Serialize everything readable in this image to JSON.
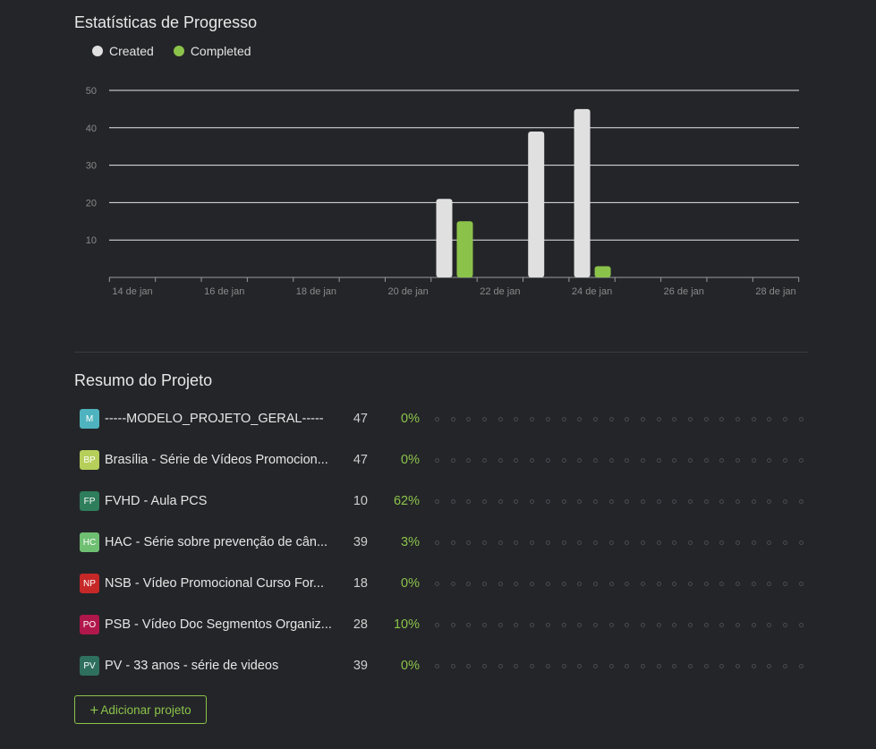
{
  "stats": {
    "title": "Estatísticas de Progresso",
    "legend": [
      {
        "label": "Created",
        "color": "#e0e0e0"
      },
      {
        "label": "Completed",
        "color": "#8bc34a"
      }
    ]
  },
  "chart_data": {
    "type": "bar",
    "title": "",
    "xlabel": "",
    "ylabel": "",
    "ylim": [
      0,
      50
    ],
    "yticks": [
      10,
      20,
      30,
      40,
      50
    ],
    "x_tick_labels": [
      "14 de jan",
      "16 de jan",
      "18 de jan",
      "20 de jan",
      "22 de jan",
      "24 de jan",
      "26 de jan",
      "28 de jan"
    ],
    "categories": [
      "14 de jan",
      "15 de jan",
      "16 de jan",
      "17 de jan",
      "18 de jan",
      "19 de jan",
      "20 de jan",
      "21 de jan",
      "22 de jan",
      "23 de jan",
      "24 de jan",
      "25 de jan",
      "26 de jan",
      "27 de jan",
      "28 de jan"
    ],
    "series": [
      {
        "name": "Created",
        "color": "#e0e0e0",
        "values": [
          0,
          0,
          0,
          0,
          0,
          0,
          0,
          21,
          0,
          39,
          45,
          0,
          0,
          0,
          0
        ]
      },
      {
        "name": "Completed",
        "color": "#8bc34a",
        "values": [
          0,
          0,
          0,
          0,
          0,
          0,
          0,
          15,
          0,
          0,
          3,
          0,
          0,
          0,
          0
        ]
      }
    ],
    "grid": true,
    "legend_position": "top-left"
  },
  "summary": {
    "title": "Resumo do Projeto",
    "projects": [
      {
        "initials": "M",
        "color": "#4fb3bf",
        "name": "-----MODELO_PROJETO_GERAL-----",
        "count": "47",
        "percent": "0%"
      },
      {
        "initials": "BP",
        "color": "#b5cf5a",
        "name": "Brasília - Série de Vídeos Promocion...",
        "count": "47",
        "percent": "0%"
      },
      {
        "initials": "FP",
        "color": "#2e7d5b",
        "name": "FVHD - Aula PCS",
        "count": "10",
        "percent": "62%"
      },
      {
        "initials": "HC",
        "color": "#6fbf73",
        "name": "HAC - Série sobre prevenção de cân...",
        "count": "39",
        "percent": "3%"
      },
      {
        "initials": "NP",
        "color": "#c62828",
        "name": "NSB - Vídeo Promocional Curso For...",
        "count": "18",
        "percent": "0%"
      },
      {
        "initials": "PO",
        "color": "#b0174a",
        "name": "PSB - Vídeo Doc Segmentos Organiz...",
        "count": "28",
        "percent": "10%"
      },
      {
        "initials": "PV",
        "color": "#2e6f5e",
        "name": "PV - 33 anos - série de videos",
        "count": "39",
        "percent": "0%"
      }
    ],
    "add_button_label": "Adicionar projeto"
  }
}
